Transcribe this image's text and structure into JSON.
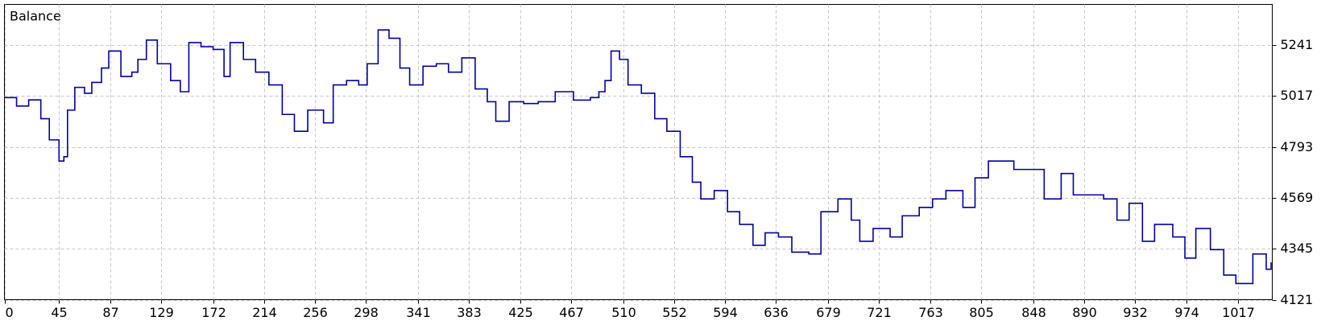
{
  "chart_data": {
    "type": "line",
    "step": true,
    "grid": true,
    "x": [
      0,
      10,
      20,
      30,
      37,
      45,
      49,
      52,
      58,
      66,
      72,
      80,
      86,
      96,
      105,
      110,
      117,
      126,
      137,
      145,
      152,
      162,
      172,
      181,
      186,
      197,
      207,
      218,
      229,
      239,
      250,
      263,
      271,
      282,
      292,
      299,
      308,
      317,
      326,
      334,
      345,
      356,
      366,
      377,
      388,
      398,
      405,
      416,
      428,
      440,
      454,
      469,
      483,
      490,
      495,
      500,
      507,
      514,
      525,
      536,
      546,
      557,
      567,
      574,
      585,
      596,
      606,
      617,
      627,
      638,
      649,
      663,
      673,
      687,
      698,
      705,
      716,
      730,
      740,
      754,
      765,
      776,
      790,
      800,
      811,
      821,
      832,
      843,
      857,
      871,
      881,
      892,
      906,
      917,
      927,
      938,
      948,
      963,
      973,
      982,
      994,
      1005,
      1015,
      1029,
      1040,
      1044
    ],
    "series": [
      {
        "name": "Balance",
        "color": "#0000a8",
        "values": [
          5010,
          4973,
          5000,
          4917,
          4824,
          4731,
          4750,
          4955,
          5055,
          5029,
          5077,
          5140,
          5215,
          5103,
          5122,
          5178,
          5263,
          5159,
          5085,
          5036,
          5252,
          5234,
          5222,
          5103,
          5252,
          5178,
          5122,
          5066,
          4936,
          4862,
          4955,
          4899,
          5066,
          5085,
          5066,
          5159,
          5308,
          5271,
          5140,
          5066,
          5148,
          5159,
          5122,
          5185,
          5048,
          4992,
          4906,
          4992,
          4984,
          4992,
          5036,
          4999,
          5010,
          5036,
          5085,
          5215,
          5178,
          5066,
          5029,
          4917,
          4862,
          4750,
          4638,
          4564,
          4601,
          4508,
          4452,
          4360,
          4415,
          4397,
          4330,
          4322,
          4508,
          4564,
          4471,
          4378,
          4434,
          4397,
          4490,
          4527,
          4564,
          4601,
          4527,
          4657,
          4731,
          4731,
          4694,
          4694,
          4564,
          4676,
          4582,
          4582,
          4564,
          4471,
          4545,
          4378,
          4452,
          4397,
          4304,
          4434,
          4341,
          4229,
          4192,
          4322,
          4255,
          4285
        ]
      }
    ],
    "xlim": [
      0,
      1045
    ],
    "xticks": [
      0,
      45,
      87,
      129,
      172,
      214,
      256,
      298,
      341,
      383,
      425,
      467,
      510,
      552,
      594,
      636,
      679,
      721,
      763,
      805,
      848,
      890,
      932,
      974,
      1017
    ],
    "ylim": [
      4121,
      5420
    ],
    "yticks": [
      4121,
      4345,
      4569,
      4793,
      5017,
      5241
    ]
  }
}
